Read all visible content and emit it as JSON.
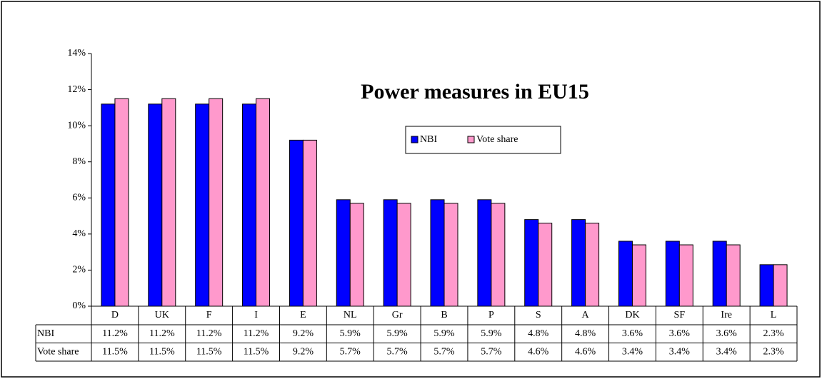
{
  "chart_data": {
    "type": "bar",
    "title": "Power measures in EU15",
    "categories": [
      "D",
      "UK",
      "F",
      "I",
      "E",
      "NL",
      "Gr",
      "B",
      "P",
      "S",
      "A",
      "DK",
      "SF",
      "Ire",
      "L"
    ],
    "series": [
      {
        "name": "NBI",
        "color": "#0000ff",
        "values": [
          11.2,
          11.2,
          11.2,
          11.2,
          9.2,
          5.9,
          5.9,
          5.9,
          5.9,
          4.8,
          4.8,
          3.6,
          3.6,
          3.6,
          2.3
        ],
        "value_labels": [
          "11.2%",
          "11.2%",
          "11.2%",
          "11.2%",
          "9.2%",
          "5.9%",
          "5.9%",
          "5.9%",
          "5.9%",
          "4.8%",
          "4.8%",
          "3.6%",
          "3.6%",
          "3.6%",
          "2.3%"
        ]
      },
      {
        "name": "Vote share",
        "color": "#ff99cc",
        "values": [
          11.5,
          11.5,
          11.5,
          11.5,
          9.2,
          5.7,
          5.7,
          5.7,
          5.7,
          4.6,
          4.6,
          3.4,
          3.4,
          3.4,
          2.3
        ],
        "value_labels": [
          "11.5%",
          "11.5%",
          "11.5%",
          "11.5%",
          "9.2%",
          "5.7%",
          "5.7%",
          "5.7%",
          "5.7%",
          "4.6%",
          "4.6%",
          "3.4%",
          "3.4%",
          "3.4%",
          "2.3%"
        ]
      }
    ],
    "ylim": [
      0,
      14
    ],
    "yticks": [
      {
        "value": 0,
        "label": "0%"
      },
      {
        "value": 2,
        "label": "2%"
      },
      {
        "value": 4,
        "label": "4%"
      },
      {
        "value": 6,
        "label": "6%"
      },
      {
        "value": 8,
        "label": "8%"
      },
      {
        "value": 10,
        "label": "10%"
      },
      {
        "value": 12,
        "label": "12%"
      },
      {
        "value": 14,
        "label": "14%"
      }
    ],
    "grid": false,
    "legend": "top-center"
  }
}
